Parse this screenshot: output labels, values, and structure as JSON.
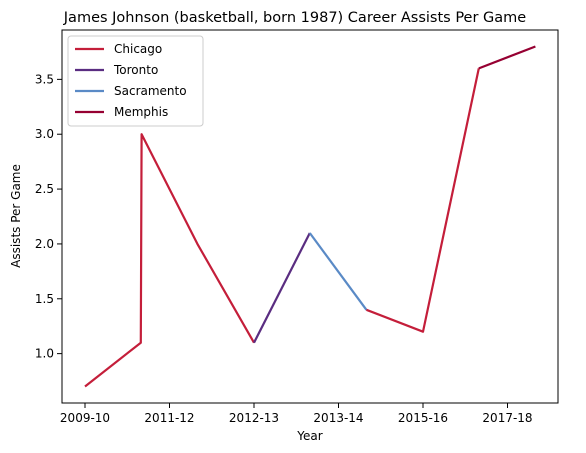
{
  "chart_data": {
    "type": "line",
    "title": "James Johnson (basketball, born 1987) Career Assists Per Game",
    "xlabel": "Year",
    "ylabel": "Assists Per Game",
    "x_ticks": [
      "2009-10",
      "2011-12",
      "2012-13",
      "2013-14",
      "2015-16",
      "2017-18"
    ],
    "y_ticks": [
      "1.0",
      "1.5",
      "2.0",
      "2.5",
      "3.0",
      "3.5"
    ],
    "ylim": [
      0.55,
      3.95
    ],
    "grid": false,
    "legend_placement": "top-left",
    "series": [
      {
        "name": "Chicago",
        "color": "#c41e3a",
        "points": [
          {
            "x": 0,
            "y": 0.7
          },
          {
            "x": 0.66,
            "y": 1.1
          },
          {
            "x": 0.67,
            "y": 3.0
          },
          {
            "x": 1.33,
            "y": 2.0
          },
          {
            "x": 2.0,
            "y": 1.1
          }
        ]
      },
      {
        "name": "Toronto",
        "color": "#5a2d81",
        "points": [
          {
            "x": 2.0,
            "y": 1.1
          },
          {
            "x": 2.66,
            "y": 2.1
          }
        ]
      },
      {
        "name": "Sacramento",
        "color": "#5a8ac6",
        "points": [
          {
            "x": 2.66,
            "y": 2.1
          },
          {
            "x": 3.33,
            "y": 1.4
          }
        ]
      },
      {
        "name": "Chicago",
        "color": "#c41e3a",
        "points": [
          {
            "x": 3.33,
            "y": 1.4
          },
          {
            "x": 4.0,
            "y": 1.2
          },
          {
            "x": 4.66,
            "y": 3.6
          }
        ]
      },
      {
        "name": "Memphis",
        "color": "#960032",
        "points": [
          {
            "x": 4.66,
            "y": 3.6
          },
          {
            "x": 5.33,
            "y": 3.8
          }
        ]
      }
    ],
    "legend": [
      {
        "name": "Chicago",
        "color": "#c41e3a"
      },
      {
        "name": "Toronto",
        "color": "#5a2d81"
      },
      {
        "name": "Sacramento",
        "color": "#5a8ac6"
      },
      {
        "name": "Memphis",
        "color": "#960032"
      }
    ]
  }
}
